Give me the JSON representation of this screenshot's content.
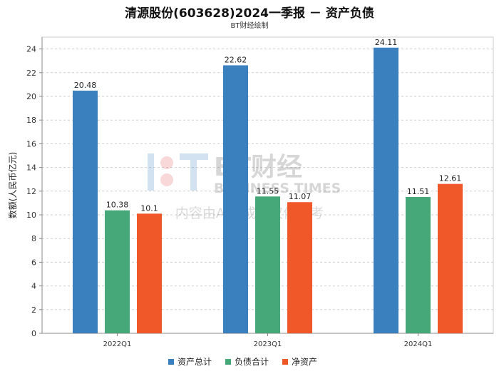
{
  "chart_data": {
    "type": "bar",
    "title": "清源股份(603628)2024一季报 － 资产负债",
    "subtitle": "BT财经绘制",
    "ylabel": "数额(人民币亿元)",
    "xlabel": "",
    "categories": [
      "2022Q1",
      "2023Q1",
      "2024Q1"
    ],
    "ylim": [
      0,
      25
    ],
    "yticks": [
      0,
      2,
      4,
      6,
      8,
      10,
      12,
      14,
      16,
      18,
      20,
      22,
      24
    ],
    "grid": true,
    "legend_position": "bottom",
    "series": [
      {
        "name": "资产总计",
        "color": "#3a80bf",
        "values": [
          20.48,
          22.62,
          24.11
        ]
      },
      {
        "name": "负债合计",
        "color": "#46a878",
        "values": [
          10.38,
          11.55,
          11.51
        ]
      },
      {
        "name": "净资产",
        "color": "#f0582a",
        "values": [
          10.1,
          11.07,
          12.61
        ]
      }
    ]
  },
  "watermark": {
    "logo_text": "BT财经",
    "logo_subtext": "BUSINESS TIMES",
    "note": "内容由AI生成，仅供参考"
  }
}
